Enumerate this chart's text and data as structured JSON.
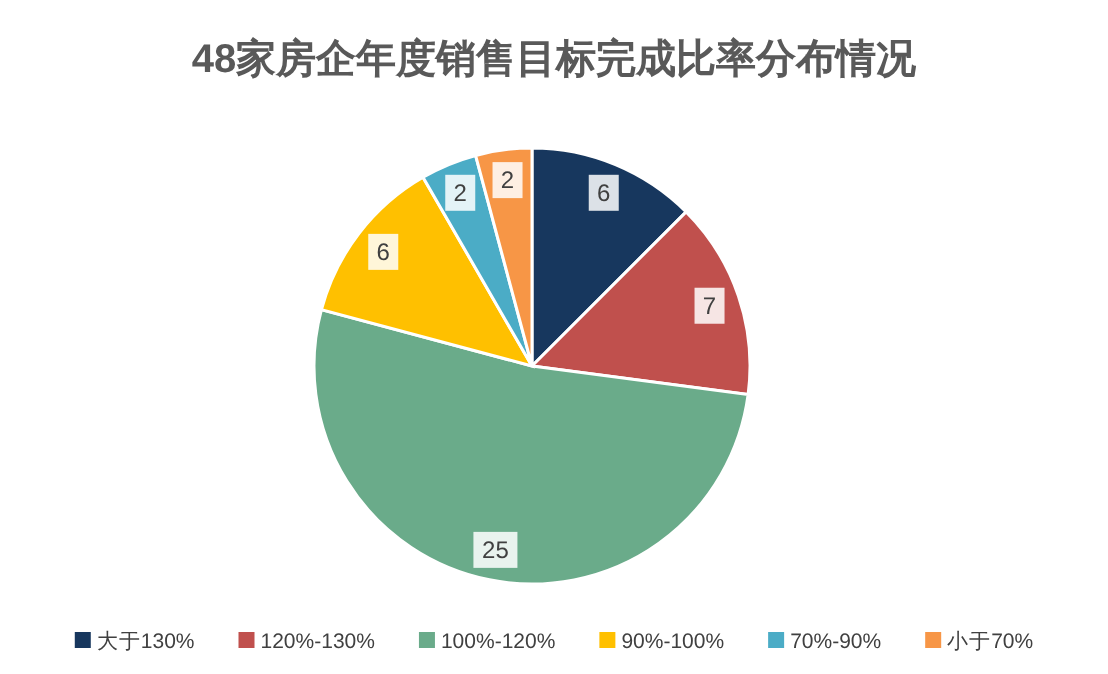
{
  "chart_data": {
    "type": "pie",
    "title": "48家房企年度销售目标完成比率分布情况",
    "categories": [
      "大于130%",
      "120%-130%",
      "100%-120%",
      "90%-100%",
      "70%-90%",
      "小于70%"
    ],
    "values": [
      6,
      7,
      25,
      6,
      2,
      2
    ],
    "colors": [
      "#17375e",
      "#c0504d",
      "#6aab8a",
      "#ffc000",
      "#4bacc6",
      "#f79646"
    ],
    "data_labels": true,
    "legend": "bottom"
  }
}
